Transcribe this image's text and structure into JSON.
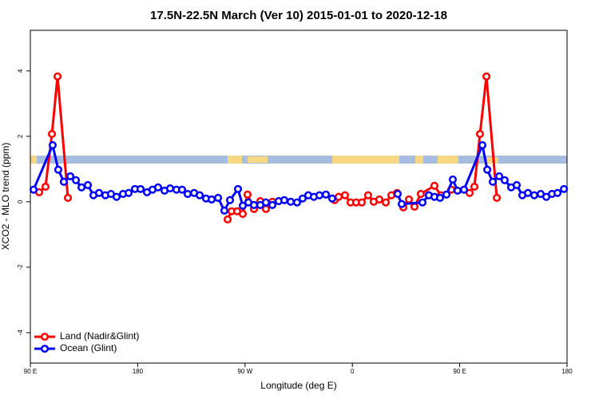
{
  "chart_data": {
    "type": "line",
    "title": "17.5N-22.5N March (Ver 10)   2015-01-01 to 2020-12-18",
    "x_label": "Longitude (deg E)",
    "y_label": "XCO2 - MLO trend (ppm)",
    "xlim": [
      90,
      540
    ],
    "xticks": [
      {
        "value": 90,
        "label": "90 E"
      },
      {
        "value": 180,
        "label": "180"
      },
      {
        "value": 270,
        "label": "90 W"
      },
      {
        "value": 360,
        "label": "0"
      },
      {
        "value": 450,
        "label": "90 E"
      },
      {
        "value": 540,
        "label": "180"
      }
    ],
    "ylim": [
      -4.93,
      5.24
    ],
    "yticks": [
      -4,
      -2,
      0,
      2,
      4
    ],
    "legend": "bottom-left",
    "series": [
      {
        "name": "Land (Nadir&Glint)",
        "color": "#ff0000",
        "x": [
          97.4,
          102.7,
          108.1,
          112.8,
          121.5,
          200,
          255.4,
          258.7,
          263.4,
          268.1,
          272.1,
          277.5,
          282.8,
          287.5,
          292.9,
          320,
          345.1,
          348.5,
          353.8,
          358.5,
          363.2,
          367.9,
          373.2,
          377.9,
          382.6,
          388.0,
          392.7,
          397.4,
          402.7,
          407.4,
          412.1,
          417.4,
          428.8,
          434.2,
          442.9,
          458.3,
          462.3,
          467.0,
          472.4,
          481.1
        ],
        "values": [
          0.29,
          0.46,
          2.07,
          3.83,
          0.12,
          null,
          -0.54,
          -0.29,
          -0.29,
          -0.37,
          0.22,
          -0.22,
          0.02,
          -0.22,
          0,
          null,
          0.05,
          0.15,
          0.2,
          -0.02,
          -0.02,
          -0.02,
          0.2,
          0,
          0.07,
          -0.02,
          0.2,
          0.27,
          -0.17,
          0.07,
          -0.15,
          0.24,
          0.49,
          0.2,
          0.37,
          0.27,
          0.46,
          2.07,
          3.83,
          0.12
        ]
      },
      {
        "name": "Ocean (Glint)",
        "color": "#0000ff",
        "x": [
          92.7,
          108.7,
          113.4,
          118.1,
          123.5,
          128.2,
          132.9,
          138.2,
          142.9,
          147.6,
          152.9,
          157.6,
          162.3,
          167.7,
          172.4,
          177.7,
          182.4,
          187.8,
          192.4,
          197.1,
          202.5,
          207.2,
          212.5,
          217.2,
          221.9,
          227.3,
          232.0,
          237.3,
          242.0,
          247.4,
          252.7,
          257.4,
          264.1,
          268.1,
          272.8,
          277.5,
          282.8,
          287.5,
          292.9,
          298.2,
          302.9,
          308.3,
          313.6,
          318.3,
          323.0,
          327.7,
          332.4,
          337.8,
          343.1,
          370,
          398.0,
          401.4,
          418.8,
          424.1,
          428.8,
          433.5,
          438.9,
          444.2,
          448.2,
          453.6,
          469.0,
          473.1,
          477.7,
          483.1,
          487.7,
          493.1,
          497.8,
          502.5,
          507.2,
          512.5,
          517.9,
          522.6,
          527.3,
          532.0,
          537.4
        ],
        "values": [
          0.37,
          1.73,
          0.98,
          0.61,
          0.78,
          0.66,
          0.44,
          0.51,
          0.2,
          0.27,
          0.2,
          0.24,
          0.15,
          0.24,
          0.27,
          0.39,
          0.39,
          0.29,
          0.37,
          0.44,
          0.34,
          0.41,
          0.37,
          0.37,
          0.24,
          0.27,
          0.2,
          0.1,
          0.07,
          0.12,
          -0.27,
          0.05,
          0.39,
          -0.12,
          -0.02,
          -0.1,
          -0.1,
          -0.02,
          -0.1,
          0.02,
          0.05,
          0,
          -0.02,
          0.1,
          0.2,
          0.15,
          0.2,
          0.22,
          0.1,
          null,
          0.24,
          -0.07,
          -0.02,
          0.2,
          0.15,
          0.12,
          0.22,
          0.68,
          0.34,
          0.37,
          1.73,
          0.98,
          0.61,
          0.78,
          0.66,
          0.44,
          0.51,
          0.2,
          0.27,
          0.2,
          0.24,
          0.15,
          0.24,
          0.27,
          0.39
        ]
      }
    ]
  }
}
